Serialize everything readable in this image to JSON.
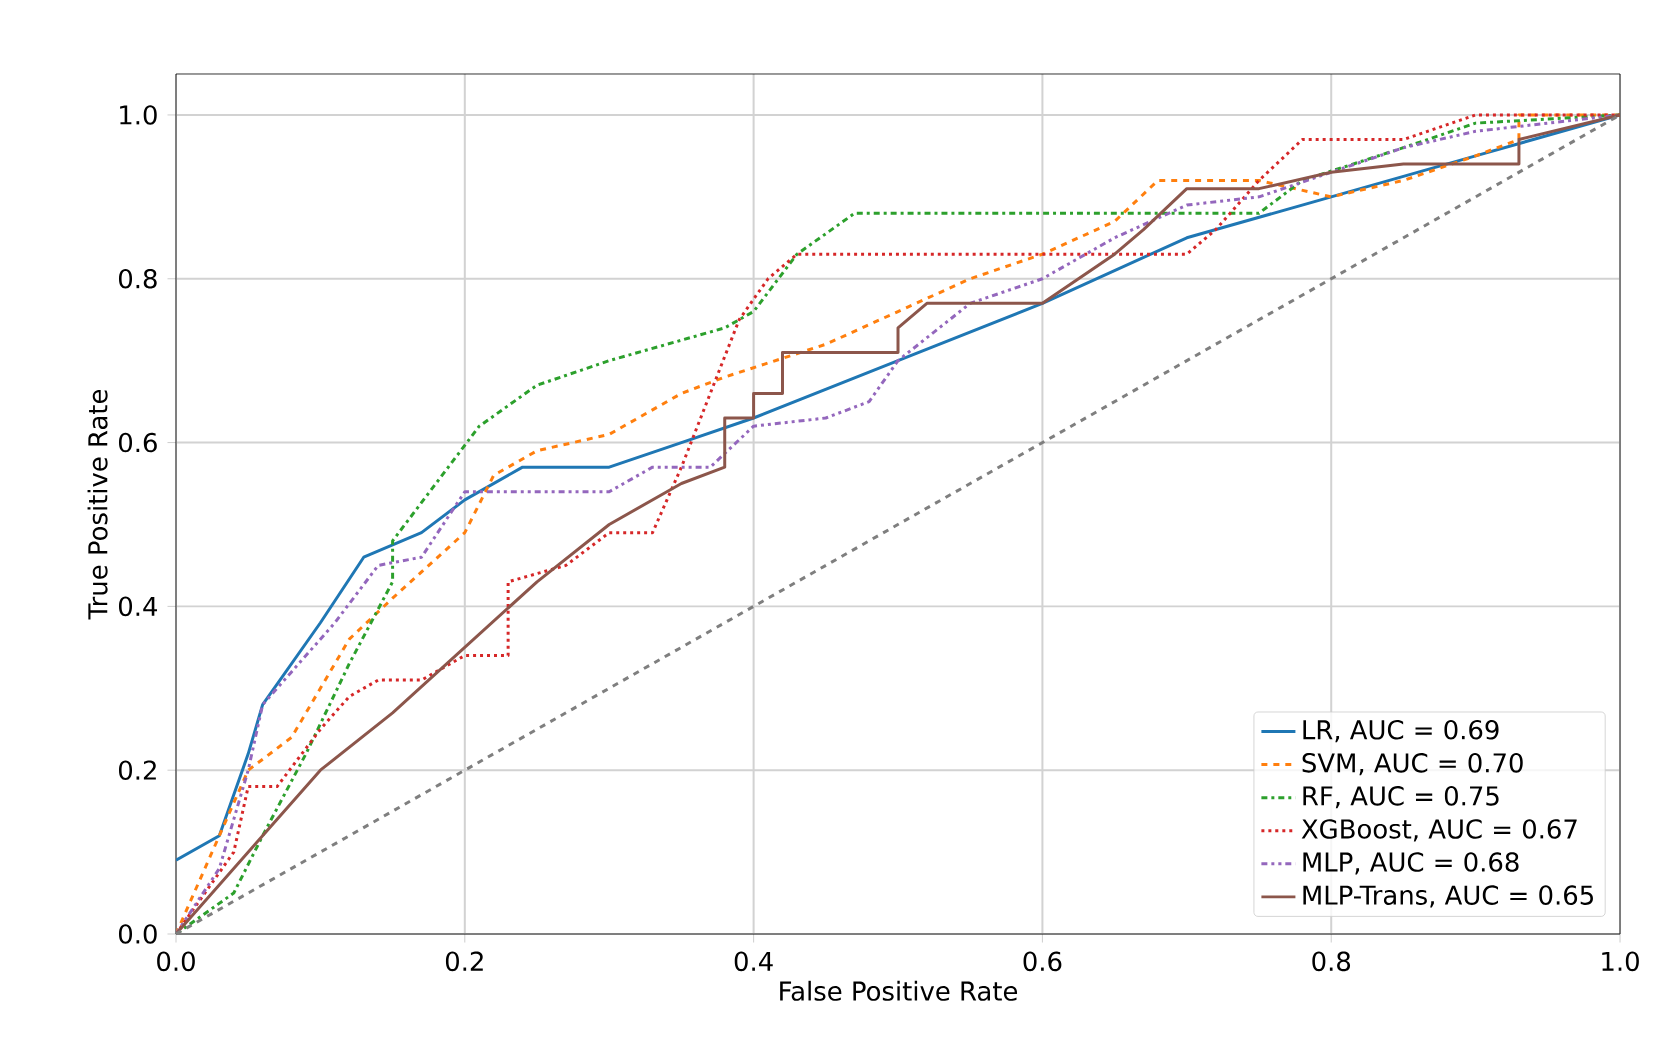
{
  "chart_data": {
    "type": "line",
    "xlabel": "False Positive Rate",
    "ylabel": "True Positive Rate",
    "xlim": [
      0,
      1
    ],
    "ylim": [
      0,
      1.05
    ],
    "xticks": [
      {
        "value": 0,
        "label": "0.0"
      },
      0.2,
      0.4,
      0.6,
      0.8,
      {
        "value": 1,
        "label": "1.0"
      }
    ],
    "yticks": [
      {
        "value": 0,
        "label": "0.0"
      },
      0.2,
      0.4,
      0.6,
      0.8,
      {
        "value": 1,
        "label": "1.0"
      }
    ],
    "grid": true,
    "legend": "bottom right",
    "series": [
      {
        "name": "LR, AUC = 0.69",
        "color": "#1f77b4",
        "line_style": "solid",
        "x": [
          0,
          0.03,
          0.05,
          0.06,
          0.08,
          0.1,
          0.13,
          0.17,
          0.2,
          0.24,
          0.3,
          0.35,
          0.4,
          0.5,
          0.6,
          0.7,
          0.8,
          0.9,
          1
        ],
        "values": [
          0.09,
          0.12,
          0.22,
          0.28,
          0.33,
          0.38,
          0.46,
          0.49,
          0.53,
          0.57,
          0.57,
          0.6,
          0.63,
          0.7,
          0.77,
          0.85,
          0.9,
          0.95,
          1
        ]
      },
      {
        "name": "SVM, AUC = 0.70",
        "color": "#ff7f0e",
        "line_style": "dashed",
        "x": [
          0,
          0.03,
          0.05,
          0.08,
          0.1,
          0.12,
          0.15,
          0.2,
          0.22,
          0.25,
          0.3,
          0.35,
          0.38,
          0.45,
          0.5,
          0.55,
          0.6,
          0.65,
          0.68,
          0.75,
          0.8,
          0.85,
          0.9,
          0.93,
          0.93,
          1
        ],
        "values": [
          0,
          0.12,
          0.2,
          0.24,
          0.3,
          0.36,
          0.41,
          0.49,
          0.56,
          0.59,
          0.61,
          0.66,
          0.68,
          0.72,
          0.76,
          0.8,
          0.83,
          0.87,
          0.92,
          0.92,
          0.9,
          0.92,
          0.95,
          0.97,
          1,
          1
        ]
      },
      {
        "name": "RF, AUC = 0.75",
        "color": "#2ca02c",
        "line_style": "dashdot",
        "x": [
          0,
          0.04,
          0.06,
          0.09,
          0.12,
          0.15,
          0.15,
          0.18,
          0.21,
          0.25,
          0.3,
          0.38,
          0.4,
          0.43,
          0.47,
          0.55,
          0.65,
          0.75,
          0.78,
          0.85,
          0.9,
          1
        ],
        "values": [
          0,
          0.05,
          0.12,
          0.22,
          0.33,
          0.43,
          0.48,
          0.55,
          0.62,
          0.67,
          0.7,
          0.74,
          0.76,
          0.83,
          0.88,
          0.88,
          0.88,
          0.88,
          0.92,
          0.96,
          0.99,
          1
        ]
      },
      {
        "name": "XGBoost, AUC = 0.67",
        "color": "#d62728",
        "line_style": "dotted",
        "x": [
          0,
          0.02,
          0.04,
          0.05,
          0.07,
          0.1,
          0.12,
          0.14,
          0.17,
          0.2,
          0.23,
          0.23,
          0.27,
          0.3,
          0.33,
          0.35,
          0.37,
          0.39,
          0.41,
          0.43,
          0.5,
          0.6,
          0.7,
          0.72,
          0.75,
          0.78,
          0.85,
          0.9,
          1
        ],
        "values": [
          0,
          0.05,
          0.1,
          0.18,
          0.18,
          0.25,
          0.29,
          0.31,
          0.31,
          0.34,
          0.34,
          0.43,
          0.45,
          0.49,
          0.49,
          0.57,
          0.66,
          0.75,
          0.8,
          0.83,
          0.83,
          0.83,
          0.83,
          0.86,
          0.92,
          0.97,
          0.97,
          1,
          1
        ]
      },
      {
        "name": "MLP, AUC = 0.68",
        "color": "#9467bd",
        "line_style": "dashdotdot",
        "x": [
          0,
          0.03,
          0.05,
          0.06,
          0.08,
          0.11,
          0.14,
          0.17,
          0.2,
          0.3,
          0.33,
          0.37,
          0.4,
          0.45,
          0.48,
          0.5,
          0.55,
          0.6,
          0.65,
          0.7,
          0.75,
          0.8,
          0.85,
          0.9,
          1
        ],
        "values": [
          0,
          0.08,
          0.2,
          0.28,
          0.32,
          0.38,
          0.45,
          0.46,
          0.54,
          0.54,
          0.57,
          0.57,
          0.62,
          0.63,
          0.65,
          0.7,
          0.77,
          0.8,
          0.85,
          0.89,
          0.9,
          0.93,
          0.96,
          0.98,
          1
        ]
      },
      {
        "name": "MLP-Trans, AUC = 0.65",
        "color": "#8c564b",
        "line_style": "solid",
        "x": [
          0,
          0.05,
          0.1,
          0.15,
          0.2,
          0.25,
          0.3,
          0.35,
          0.38,
          0.38,
          0.4,
          0.4,
          0.42,
          0.42,
          0.5,
          0.5,
          0.52,
          0.6,
          0.65,
          0.67,
          0.7,
          0.75,
          0.8,
          0.85,
          0.93,
          0.93,
          1
        ],
        "values": [
          0,
          0.1,
          0.2,
          0.27,
          0.35,
          0.43,
          0.5,
          0.55,
          0.57,
          0.63,
          0.63,
          0.66,
          0.66,
          0.71,
          0.71,
          0.74,
          0.77,
          0.77,
          0.83,
          0.86,
          0.91,
          0.91,
          0.93,
          0.94,
          0.94,
          0.97,
          1
        ]
      },
      {
        "color": "#7f7f7f",
        "line_style": "dashed",
        "x": [
          0,
          1
        ],
        "values": [
          0,
          1
        ]
      }
    ]
  }
}
